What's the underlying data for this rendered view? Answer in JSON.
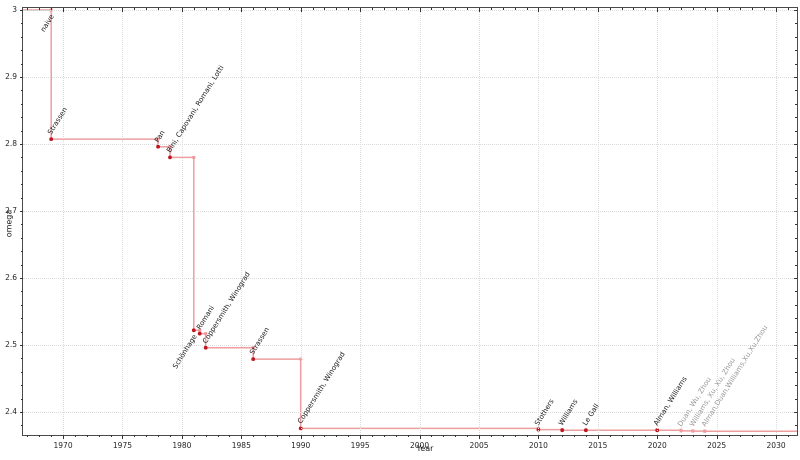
{
  "chart_data": {
    "type": "line",
    "subtype": "step-post",
    "title": "",
    "xlabel": "Year",
    "ylabel": "omega",
    "grid": "dotted-major",
    "legend": "none",
    "x_range": [
      1966.63,
      2031.76
    ],
    "y_range": [
      2.3657,
      3.003
    ],
    "x_ticks": {
      "values": [
        1970,
        1975,
        1980,
        1985,
        1990,
        1995,
        2000,
        2005,
        2010,
        2015,
        2020,
        2025,
        2030
      ],
      "labels": [
        "1970",
        "1975",
        "1980",
        "1985",
        "1990",
        "1995",
        "2000",
        "2005",
        "2010",
        "2015",
        "2020",
        "2025",
        "2030"
      ],
      "minor_step": 1
    },
    "y_ticks": {
      "values": [
        2.4,
        2.5,
        2.6,
        2.7,
        2.8,
        2.9,
        3.0
      ],
      "labels": [
        "2.4",
        "2.5",
        "2.6",
        "2.7",
        "2.8",
        "2.9",
        "3"
      ],
      "minor_step": 0.02
    },
    "colors": {
      "line": "#d62728",
      "line_alpha": 0.45,
      "marker_dark": "#bf1722",
      "marker_pale": "#f0999c",
      "label_black": "#1a1a1a",
      "label_gray": "#999999"
    },
    "points": [
      {
        "x": 1969,
        "omega": 3,
        "label": "naive",
        "side": "below-left",
        "dark_marker": false,
        "gray": false
      },
      {
        "x": 1969,
        "omega": 2.8074,
        "label": "Strassen",
        "side": "above-right",
        "dark_marker": true,
        "gray": false
      },
      {
        "x": 1978,
        "omega": 2.796,
        "label": "Pan",
        "side": "above-right",
        "dark_marker": true,
        "gray": false
      },
      {
        "x": 1979,
        "omega": 2.78,
        "label": "Bini, Capovani, Romani, Lotti",
        "side": "above-right",
        "dark_marker": true,
        "gray": false
      },
      {
        "x": 1981,
        "omega": 2.522,
        "label": "Schönhage",
        "side": "below-left",
        "dark_marker": true,
        "gray": false
      },
      {
        "x": 1981.5,
        "omega": 2.517,
        "label": "Romani",
        "side": "above-right",
        "dark_marker": true,
        "gray": false
      },
      {
        "x": 1982,
        "omega": 2.496,
        "label": "Coppersmith, Winograd",
        "side": "above-right",
        "dark_marker": true,
        "gray": false
      },
      {
        "x": 1986,
        "omega": 2.479,
        "label": "Strassen",
        "side": "above-right",
        "dark_marker": true,
        "gray": false
      },
      {
        "x": 1990,
        "omega": 2.3755,
        "label": "Coppersmith, Winograd",
        "side": "above-right",
        "dark_marker": true,
        "gray": false
      },
      {
        "x": 2010,
        "omega": 2.3737,
        "label": "Stothers",
        "side": "above-right",
        "dark_marker": true,
        "gray": false
      },
      {
        "x": 2012,
        "omega": 2.3729,
        "label": "Williams",
        "side": "above-right",
        "dark_marker": true,
        "gray": false
      },
      {
        "x": 2014,
        "omega": 2.3728639,
        "label": "Le Gall",
        "side": "above-right",
        "dark_marker": true,
        "gray": false
      },
      {
        "x": 2020,
        "omega": 2.3728596,
        "label": "Alman, Williams",
        "side": "above-right",
        "dark_marker": true,
        "gray": false
      },
      {
        "x": 2022,
        "omega": 2.371866,
        "label": "Duan, Wu, Zhou",
        "side": "above-right",
        "dark_marker": false,
        "gray": true
      },
      {
        "x": 2023,
        "omega": 2.371552,
        "label": "Williams, Xu, Xu, Zhou",
        "side": "above-right",
        "dark_marker": false,
        "gray": true
      },
      {
        "x": 2024,
        "omega": 2.371339,
        "label": "Alman,Duan,Williams,Xu,Xu,Zhou",
        "side": "above-right",
        "dark_marker": false,
        "gray": true
      }
    ]
  }
}
